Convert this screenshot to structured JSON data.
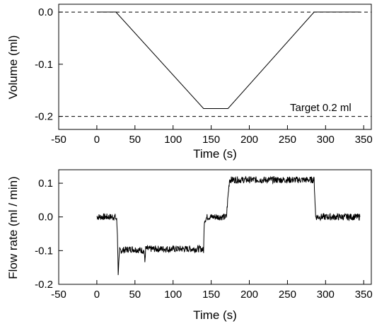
{
  "chart_data": [
    {
      "type": "line",
      "title": "",
      "xlabel": "Time (s)",
      "ylabel": "Volume (ml)",
      "xlim": [
        -50,
        360
      ],
      "ylim": [
        -0.225,
        0.015
      ],
      "xticks": [
        -50,
        0,
        50,
        100,
        150,
        200,
        250,
        300,
        350
      ],
      "xtick_labels": [
        "-50",
        "0",
        "50",
        "100",
        "150",
        "200",
        "250",
        "300",
        "350"
      ],
      "yticks": [
        0.0,
        -0.1,
        -0.2
      ],
      "ytick_labels": [
        "0.0",
        "-0.1",
        "-0.2"
      ],
      "reference_lines": [
        {
          "y": 0.0,
          "style": "dashed"
        },
        {
          "y": -0.2,
          "style": "dashed"
        }
      ],
      "annotations": [
        {
          "text": "Target 0.2 ml",
          "x": 312,
          "y": -0.19
        }
      ],
      "series": [
        {
          "x": [
            0,
            25,
            140,
            172,
            285,
            345
          ],
          "y": [
            0.0,
            0.0,
            -0.185,
            -0.185,
            0.0,
            0.0
          ]
        }
      ],
      "grid": false
    },
    {
      "type": "line",
      "title": "",
      "xlabel": "Time (s)",
      "ylabel": "Flow rate (ml / min)",
      "xlim": [
        -50,
        360
      ],
      "ylim": [
        -0.2,
        0.14
      ],
      "xticks": [
        -50,
        0,
        50,
        100,
        150,
        200,
        250,
        300,
        350
      ],
      "xtick_labels": [
        "-50",
        "0",
        "50",
        "100",
        "150",
        "200",
        "250",
        "300",
        "350"
      ],
      "yticks": [
        0.1,
        0.0,
        -0.1,
        -0.2
      ],
      "ytick_labels": [
        "0.1",
        "0.0",
        "-0.1",
        "-0.2"
      ],
      "noise": "stepwise flow signal with visible measurement noise of about ±0.01 ml/min",
      "series": [
        {
          "x": [
            0,
            24,
            26,
            27,
            28,
            30,
            45,
            62,
            63,
            64,
            80,
            100,
            120,
            138,
            140,
            141,
            145,
            150,
            160,
            170,
            172,
            174,
            180,
            200,
            220,
            240,
            260,
            280,
            285,
            287,
            290,
            300,
            320,
            345
          ],
          "y": [
            0.0,
            0.0,
            -0.01,
            -0.05,
            -0.165,
            -0.1,
            -0.095,
            -0.1,
            -0.135,
            -0.095,
            -0.095,
            -0.095,
            -0.095,
            -0.095,
            -0.1,
            -0.01,
            0.0,
            0.0,
            0.0,
            0.0,
            0.06,
            0.11,
            0.11,
            0.11,
            0.11,
            0.11,
            0.11,
            0.11,
            0.11,
            0.0,
            0.0,
            0.0,
            0.0,
            0.0
          ]
        }
      ],
      "grid": false
    }
  ]
}
